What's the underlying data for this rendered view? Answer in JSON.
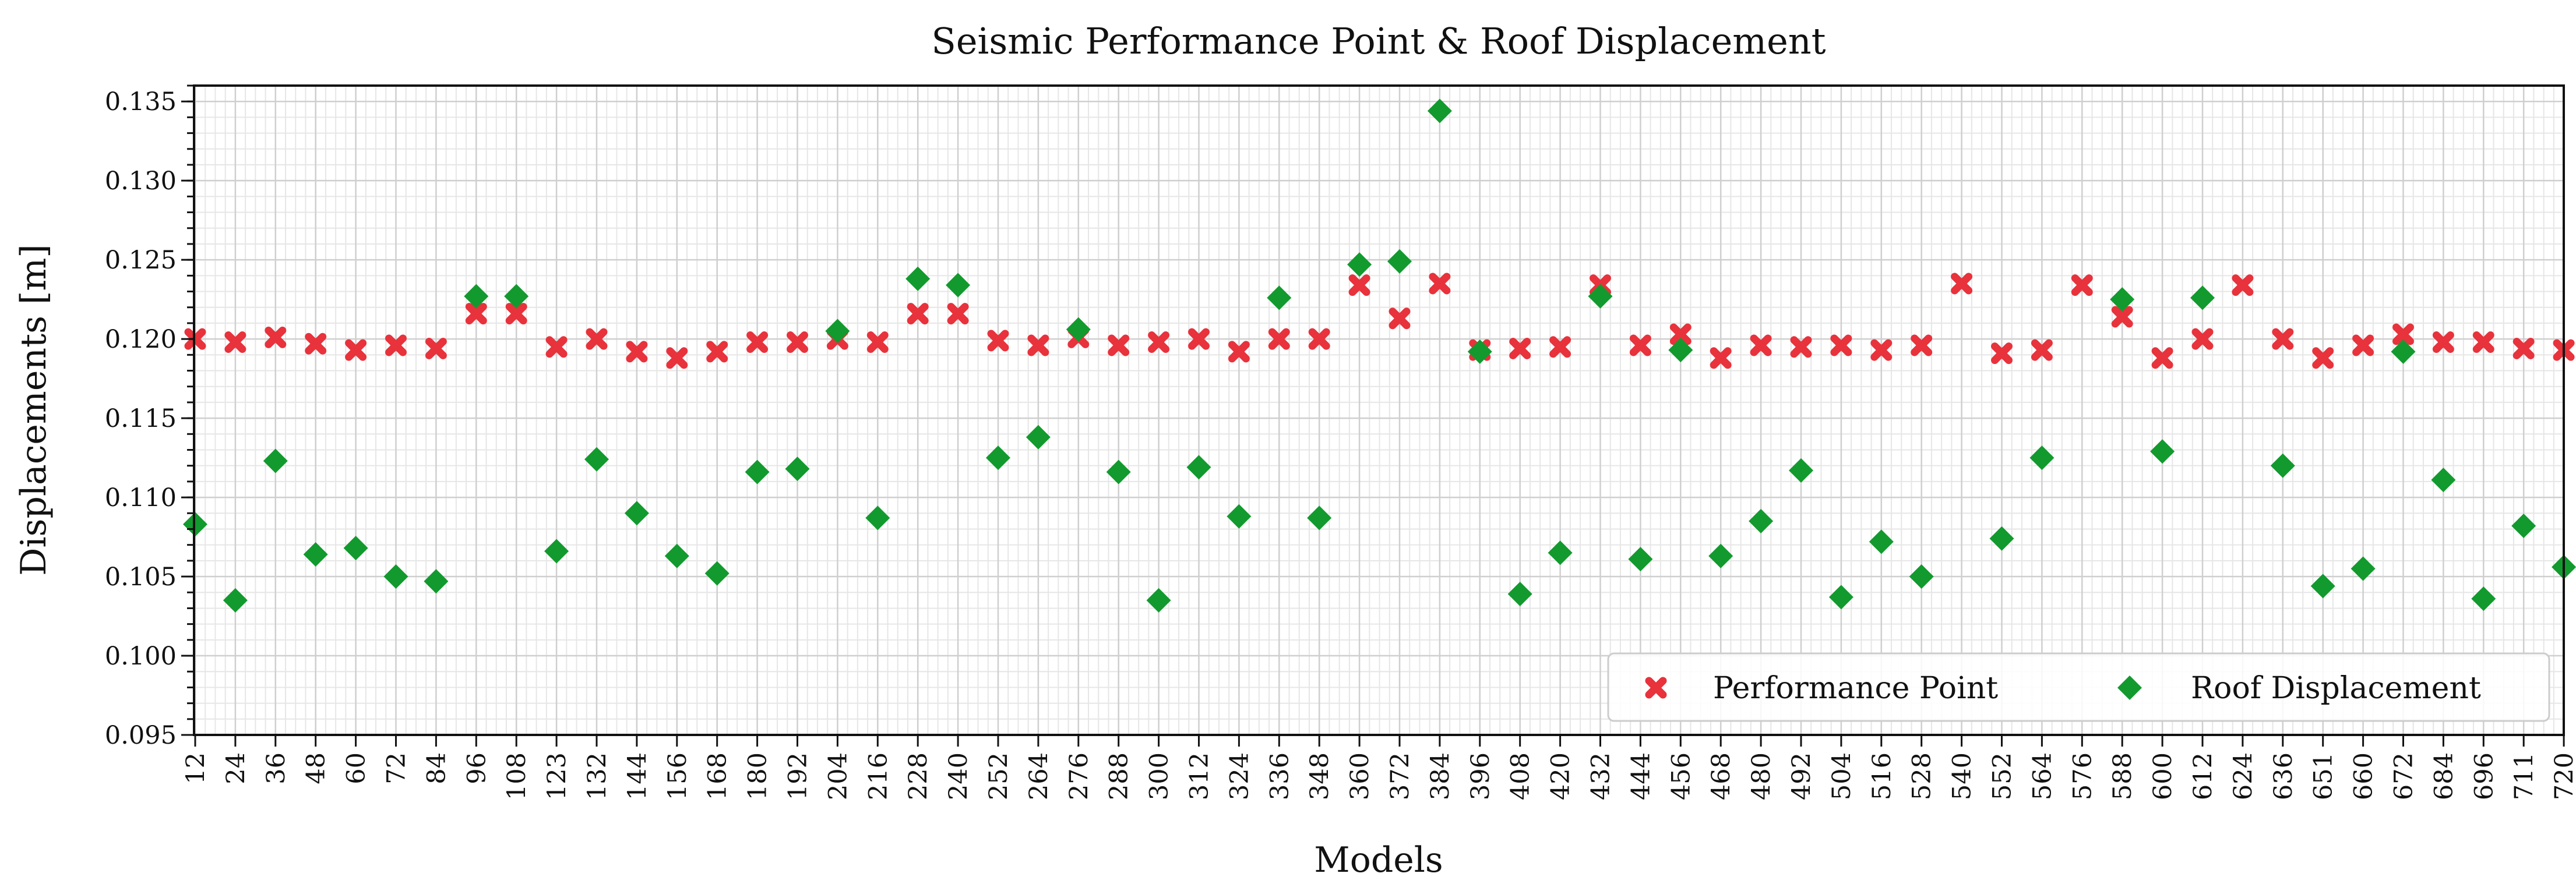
{
  "chart_data": {
    "type": "scatter",
    "title": "Seismic Performance Point & Roof Displacement",
    "xlabel": "Models",
    "ylabel": "Displacements [m]",
    "ylim": [
      0.095,
      0.136
    ],
    "yticks": [
      0.095,
      0.1,
      0.105,
      0.11,
      0.115,
      0.12,
      0.125,
      0.13,
      0.135
    ],
    "ytick_labels": [
      "0.095",
      "0.100",
      "0.105",
      "0.110",
      "0.115",
      "0.120",
      "0.125",
      "0.130",
      "0.135"
    ],
    "grid": true,
    "legend_position": "bottom-right",
    "categories": [
      "12",
      "24",
      "36",
      "48",
      "60",
      "72",
      "84",
      "96",
      "108",
      "123",
      "132",
      "144",
      "156",
      "168",
      "180",
      "192",
      "204",
      "216",
      "228",
      "240",
      "252",
      "264",
      "276",
      "288",
      "300",
      "312",
      "324",
      "336",
      "348",
      "360",
      "372",
      "384",
      "396",
      "408",
      "420",
      "432",
      "444",
      "456",
      "468",
      "480",
      "492",
      "504",
      "516",
      "528",
      "540",
      "552",
      "564",
      "576",
      "588",
      "600",
      "612",
      "624",
      "636",
      "651",
      "660",
      "672",
      "684",
      "696",
      "711",
      "720"
    ],
    "series": [
      {
        "name": "Performance Point",
        "color": "#e8323c",
        "marker": "x",
        "values": [
          0.12,
          0.1198,
          0.1201,
          0.1197,
          0.1193,
          0.1196,
          0.1194,
          0.1216,
          0.1216,
          0.1195,
          0.12,
          0.1192,
          0.1188,
          0.1192,
          0.1198,
          0.1198,
          0.12,
          0.1198,
          0.1216,
          0.1216,
          0.1199,
          0.1196,
          0.1201,
          0.1196,
          0.1198,
          0.12,
          0.1192,
          0.12,
          0.12,
          0.1234,
          0.1213,
          0.1235,
          0.1193,
          0.1194,
          0.1195,
          0.1234,
          0.1196,
          0.1203,
          0.1188,
          0.1196,
          0.1195,
          0.1196,
          0.1193,
          0.1196,
          0.1235,
          0.1191,
          0.1193,
          0.1234,
          0.1214,
          0.1188,
          0.12,
          0.1234,
          0.12,
          0.1188,
          0.1196,
          0.1203,
          0.1198,
          0.1198,
          0.1194,
          0.1193
        ]
      },
      {
        "name": "Roof Displacement",
        "color": "#129a2e",
        "marker": "D",
        "values": [
          0.1083,
          0.1035,
          0.1123,
          0.1064,
          0.1068,
          0.105,
          0.1047,
          0.1227,
          0.1227,
          0.1066,
          0.1124,
          0.109,
          0.1063,
          0.1052,
          0.1116,
          0.1118,
          0.1205,
          0.1087,
          0.1238,
          0.1234,
          0.1125,
          0.1138,
          0.1206,
          0.1116,
          0.1035,
          0.1119,
          0.1088,
          0.1226,
          0.1087,
          0.1247,
          0.1249,
          0.1344,
          0.1192,
          0.1039,
          0.1065,
          0.1227,
          0.1061,
          0.1193,
          0.1063,
          0.1085,
          0.1117,
          0.1037,
          0.1072,
          0.105,
          null,
          0.1074,
          0.1125,
          null,
          0.1225,
          0.1129,
          0.1226,
          null,
          0.112,
          0.1044,
          0.1055,
          0.1192,
          0.1111,
          0.1036,
          0.1082,
          0.1056
        ]
      }
    ]
  }
}
